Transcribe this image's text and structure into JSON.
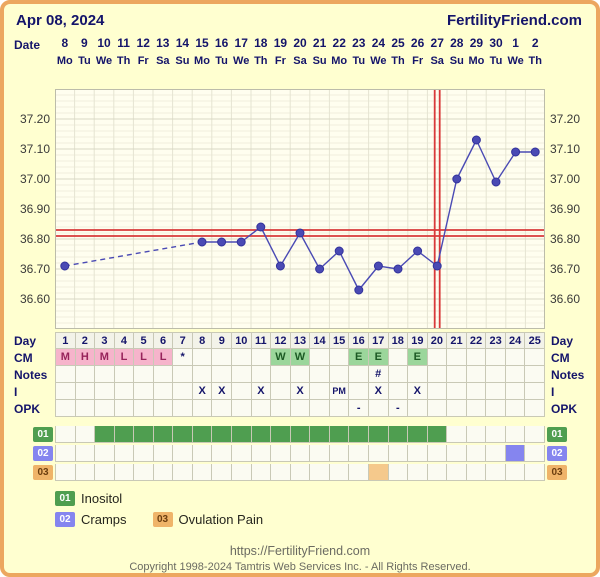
{
  "header": {
    "date": "Apr 08, 2024",
    "brand": "FertilityFriend.com"
  },
  "axis": {
    "date_label": "Date",
    "dates": [
      "8",
      "9",
      "10",
      "11",
      "12",
      "13",
      "14",
      "15",
      "16",
      "17",
      "18",
      "19",
      "20",
      "21",
      "22",
      "23",
      "24",
      "25",
      "26",
      "27",
      "28",
      "29",
      "30",
      "1",
      "2"
    ],
    "weekdays": [
      "Mo",
      "Tu",
      "We",
      "Th",
      "Fr",
      "Sa",
      "Su",
      "Mo",
      "Tu",
      "We",
      "Th",
      "Fr",
      "Sa",
      "Su",
      "Mo",
      "Tu",
      "We",
      "Th",
      "Fr",
      "Sa",
      "Su",
      "Mo",
      "Tu",
      "We",
      "Th"
    ],
    "y_ticks": [
      "37.20",
      "37.10",
      "37.00",
      "36.90",
      "36.80",
      "36.70",
      "36.60"
    ]
  },
  "chart_data": {
    "type": "line",
    "cycle_days": [
      1,
      2,
      3,
      4,
      5,
      6,
      7,
      8,
      9,
      10,
      11,
      12,
      13,
      14,
      15,
      16,
      17,
      18,
      19,
      20,
      21,
      22,
      23,
      24,
      25
    ],
    "temps": [
      36.71,
      null,
      null,
      null,
      null,
      null,
      null,
      36.79,
      36.79,
      36.79,
      36.84,
      36.71,
      36.82,
      36.7,
      36.76,
      36.63,
      36.71,
      36.7,
      36.76,
      36.71,
      37.0,
      37.13,
      36.99,
      37.09,
      37.09
    ],
    "missing_days": [
      2,
      3,
      4,
      5,
      6,
      7
    ],
    "ylim": [
      36.5,
      37.3
    ],
    "y_ticks": [
      37.2,
      37.1,
      37.0,
      36.9,
      36.8,
      36.7,
      36.6
    ],
    "coverlines": [
      36.83,
      36.81
    ],
    "ovulation_day": 20
  },
  "grid": {
    "rows": [
      {
        "key": "day",
        "label": "Day",
        "cells": [
          "1",
          "2",
          "3",
          "4",
          "5",
          "6",
          "7",
          "8",
          "9",
          "10",
          "11",
          "12",
          "13",
          "14",
          "15",
          "16",
          "17",
          "18",
          "19",
          "20",
          "21",
          "22",
          "23",
          "24",
          "25"
        ]
      },
      {
        "key": "cm",
        "label": "CM",
        "cells": [
          {
            "t": "M",
            "s": "menses"
          },
          {
            "t": "H",
            "s": "menses"
          },
          {
            "t": "M",
            "s": "menses"
          },
          {
            "t": "L",
            "s": "menses"
          },
          {
            "t": "L",
            "s": "menses"
          },
          {
            "t": "L",
            "s": "menses"
          },
          {
            "t": "*"
          },
          "",
          "",
          "",
          "",
          {
            "t": "W",
            "s": "fertile"
          },
          {
            "t": "W",
            "s": "fertile"
          },
          "",
          "",
          {
            "t": "E",
            "s": "fertile"
          },
          {
            "t": "E",
            "s": "fertile"
          },
          "",
          {
            "t": "E",
            "s": "fertile"
          },
          "",
          "",
          "",
          "",
          "",
          ""
        ]
      },
      {
        "key": "notes",
        "label": "Notes",
        "cells": [
          "",
          "",
          "",
          "",
          "",
          "",
          "",
          "",
          "",
          "",
          "",
          "",
          "",
          "",
          "",
          "",
          "#",
          "",
          "",
          "",
          "",
          "",
          "",
          "",
          ""
        ]
      },
      {
        "key": "i",
        "label": "I",
        "cells": [
          "",
          "",
          "",
          "",
          "",
          "",
          "",
          "X",
          "X",
          "",
          "X",
          "",
          "X",
          "",
          "PM",
          "",
          "X",
          "",
          "X",
          "",
          "",
          "",
          "",
          "",
          ""
        ]
      },
      {
        "key": "opk",
        "label": "OPK",
        "cells": [
          "",
          "",
          "",
          "",
          "",
          "",
          "",
          "",
          "",
          "",
          "",
          "",
          "",
          "",
          "",
          "-",
          "",
          "-",
          "",
          "",
          "",
          "",
          "",
          "",
          ""
        ]
      }
    ],
    "custom_rows": [
      {
        "id": "01",
        "fill": "#4F9E50",
        "badge_bg": "#4F9E50",
        "badge_fg": "#FFFFFF",
        "days": [
          3,
          4,
          5,
          6,
          7,
          8,
          9,
          10,
          11,
          12,
          13,
          14,
          15,
          16,
          17,
          18,
          19,
          20
        ]
      },
      {
        "id": "02",
        "fill": "#8585EF",
        "badge_bg": "#8585EF",
        "badge_fg": "#FFFFFF",
        "days": [
          24
        ]
      },
      {
        "id": "03",
        "fill": "#F5C98C",
        "badge_bg": "#EFB469",
        "badge_fg": "#6B3E0F",
        "days": [
          17
        ]
      }
    ]
  },
  "legend": {
    "lines": [
      [
        {
          "id": "01",
          "label": "Inositol"
        }
      ],
      [
        {
          "id": "02",
          "label": "Cramps"
        },
        {
          "id": "03",
          "label": "Ovulation Pain"
        }
      ]
    ]
  },
  "footer": {
    "url": "https://FertilityFriend.com",
    "copyright": "Copyright 1998-2024 Tamtris Web Services Inc. - All Rights Reserved."
  },
  "colors": {
    "page_bg": "#FFFFD0",
    "frame_border": "#ECA75F",
    "navy": "#14146A",
    "plot_bg": "#FFFEEF",
    "grid_minor": "#F0EFDE",
    "grid_major": "#D9D8C4",
    "grid_vert": "#E5E4D2",
    "line": "#4A4AB4",
    "dot_stroke": "#32329B",
    "red": "#D83A3A",
    "menses_bg": "#F6B4CB",
    "menses_fg": "#97235B",
    "fertile_bg": "#9BD69B",
    "fertile_fg": "#1C5A24",
    "cell_bg": "#FBFBF2",
    "cell_border": "#C9C9B6",
    "footer_fg": "#6B6B62"
  }
}
